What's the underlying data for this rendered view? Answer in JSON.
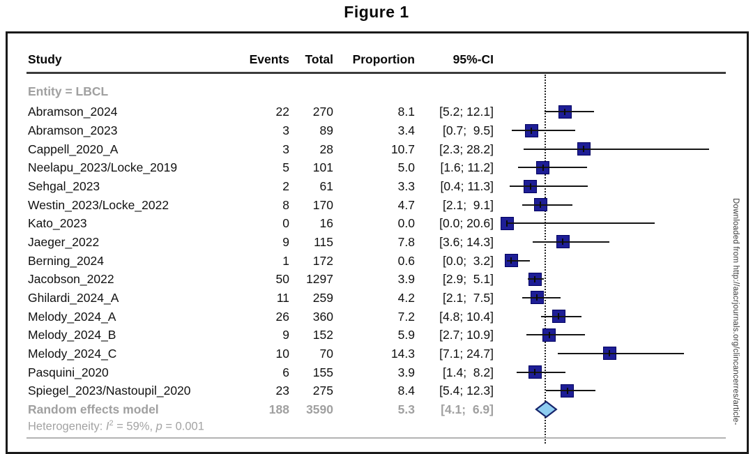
{
  "figure": {
    "title": "Figure 1",
    "watermark": "Downloaded from http://aacrjournals.org/clincancerres/article-"
  },
  "chart_data": {
    "type": "forest",
    "title": "Figure 1",
    "columns": {
      "study": "Study",
      "events": "Events",
      "total": "Total",
      "proportion": "Proportion",
      "ci": "95%-CI"
    },
    "subgroup_label": "Entity = LBCL",
    "x_axis": {
      "min": 0,
      "max": 30,
      "unit": "proportion (%)",
      "reference_line": 5.3,
      "gridlines": false
    },
    "studies": [
      {
        "study": "Abramson_2024",
        "events": 22,
        "total": 270,
        "proportion": "8.1",
        "prop_val": 8.1,
        "ci_low": 5.2,
        "ci_high": 12.1,
        "ci_text": "[5.2; 12.1]"
      },
      {
        "study": "Abramson_2023",
        "events": 3,
        "total": 89,
        "proportion": "3.4",
        "prop_val": 3.4,
        "ci_low": 0.7,
        "ci_high": 9.5,
        "ci_text": "[0.7;  9.5]"
      },
      {
        "study": "Cappell_2020_A",
        "events": 3,
        "total": 28,
        "proportion": "10.7",
        "prop_val": 10.7,
        "ci_low": 2.3,
        "ci_high": 28.2,
        "ci_text": "[2.3; 28.2]"
      },
      {
        "study": "Neelapu_2023/Locke_2019",
        "events": 5,
        "total": 101,
        "proportion": "5.0",
        "prop_val": 5.0,
        "ci_low": 1.6,
        "ci_high": 11.2,
        "ci_text": "[1.6; 11.2]"
      },
      {
        "study": "Sehgal_2023",
        "events": 2,
        "total": 61,
        "proportion": "3.3",
        "prop_val": 3.3,
        "ci_low": 0.4,
        "ci_high": 11.3,
        "ci_text": "[0.4; 11.3]"
      },
      {
        "study": "Westin_2023/Locke_2022",
        "events": 8,
        "total": 170,
        "proportion": "4.7",
        "prop_val": 4.7,
        "ci_low": 2.1,
        "ci_high": 9.1,
        "ci_text": "[2.1;  9.1]"
      },
      {
        "study": "Kato_2023",
        "events": 0,
        "total": 16,
        "proportion": "0.0",
        "prop_val": 0.0,
        "ci_low": 0.0,
        "ci_high": 20.6,
        "ci_text": "[0.0; 20.6]"
      },
      {
        "study": "Jaeger_2022",
        "events": 9,
        "total": 115,
        "proportion": "7.8",
        "prop_val": 7.8,
        "ci_low": 3.6,
        "ci_high": 14.3,
        "ci_text": "[3.6; 14.3]"
      },
      {
        "study": "Berning_2024",
        "events": 1,
        "total": 172,
        "proportion": "0.6",
        "prop_val": 0.6,
        "ci_low": 0.0,
        "ci_high": 3.2,
        "ci_text": "[0.0;  3.2]"
      },
      {
        "study": "Jacobson_2022",
        "events": 50,
        "total": 1297,
        "proportion": "3.9",
        "prop_val": 3.9,
        "ci_low": 2.9,
        "ci_high": 5.1,
        "ci_text": "[2.9;  5.1]"
      },
      {
        "study": "Ghilardi_2024_A",
        "events": 11,
        "total": 259,
        "proportion": "4.2",
        "prop_val": 4.2,
        "ci_low": 2.1,
        "ci_high": 7.5,
        "ci_text": "[2.1;  7.5]"
      },
      {
        "study": "Melody_2024_A",
        "events": 26,
        "total": 360,
        "proportion": "7.2",
        "prop_val": 7.2,
        "ci_low": 4.8,
        "ci_high": 10.4,
        "ci_text": "[4.8; 10.4]"
      },
      {
        "study": "Melody_2024_B",
        "events": 9,
        "total": 152,
        "proportion": "5.9",
        "prop_val": 5.9,
        "ci_low": 2.7,
        "ci_high": 10.9,
        "ci_text": "[2.7; 10.9]"
      },
      {
        "study": "Melody_2024_C",
        "events": 10,
        "total": 70,
        "proportion": "14.3",
        "prop_val": 14.3,
        "ci_low": 7.1,
        "ci_high": 24.7,
        "ci_text": "[7.1; 24.7]"
      },
      {
        "study": "Pasquini_2020",
        "events": 6,
        "total": 155,
        "proportion": "3.9",
        "prop_val": 3.9,
        "ci_low": 1.4,
        "ci_high": 8.2,
        "ci_text": "[1.4;  8.2]"
      },
      {
        "study": "Spiegel_2023/Nastoupil_2020",
        "events": 23,
        "total": 275,
        "proportion": "8.4",
        "prop_val": 8.4,
        "ci_low": 5.4,
        "ci_high": 12.3,
        "ci_text": "[5.4; 12.3]"
      }
    ],
    "summary": {
      "label": "Random effects model",
      "events": 188,
      "total": 3590,
      "proportion": "5.3",
      "prop_val": 5.3,
      "ci_low": 4.1,
      "ci_high": 6.9,
      "ci_text": "[4.1;  6.9]"
    },
    "heterogeneity": {
      "prefix": "Heterogeneity: ",
      "i_sym": "I",
      "i_sup": "2",
      "mid": " = 59%, ",
      "p_sym": "p",
      "suffix": " = 0.001"
    },
    "colors": {
      "square_fill": "#1e1e96",
      "square_border": "#000060",
      "diamond_fill": "#8ecdf0",
      "diamond_border": "#16246b",
      "ci_line": "#151515",
      "subgroup_text": "#a0a0a0"
    }
  }
}
